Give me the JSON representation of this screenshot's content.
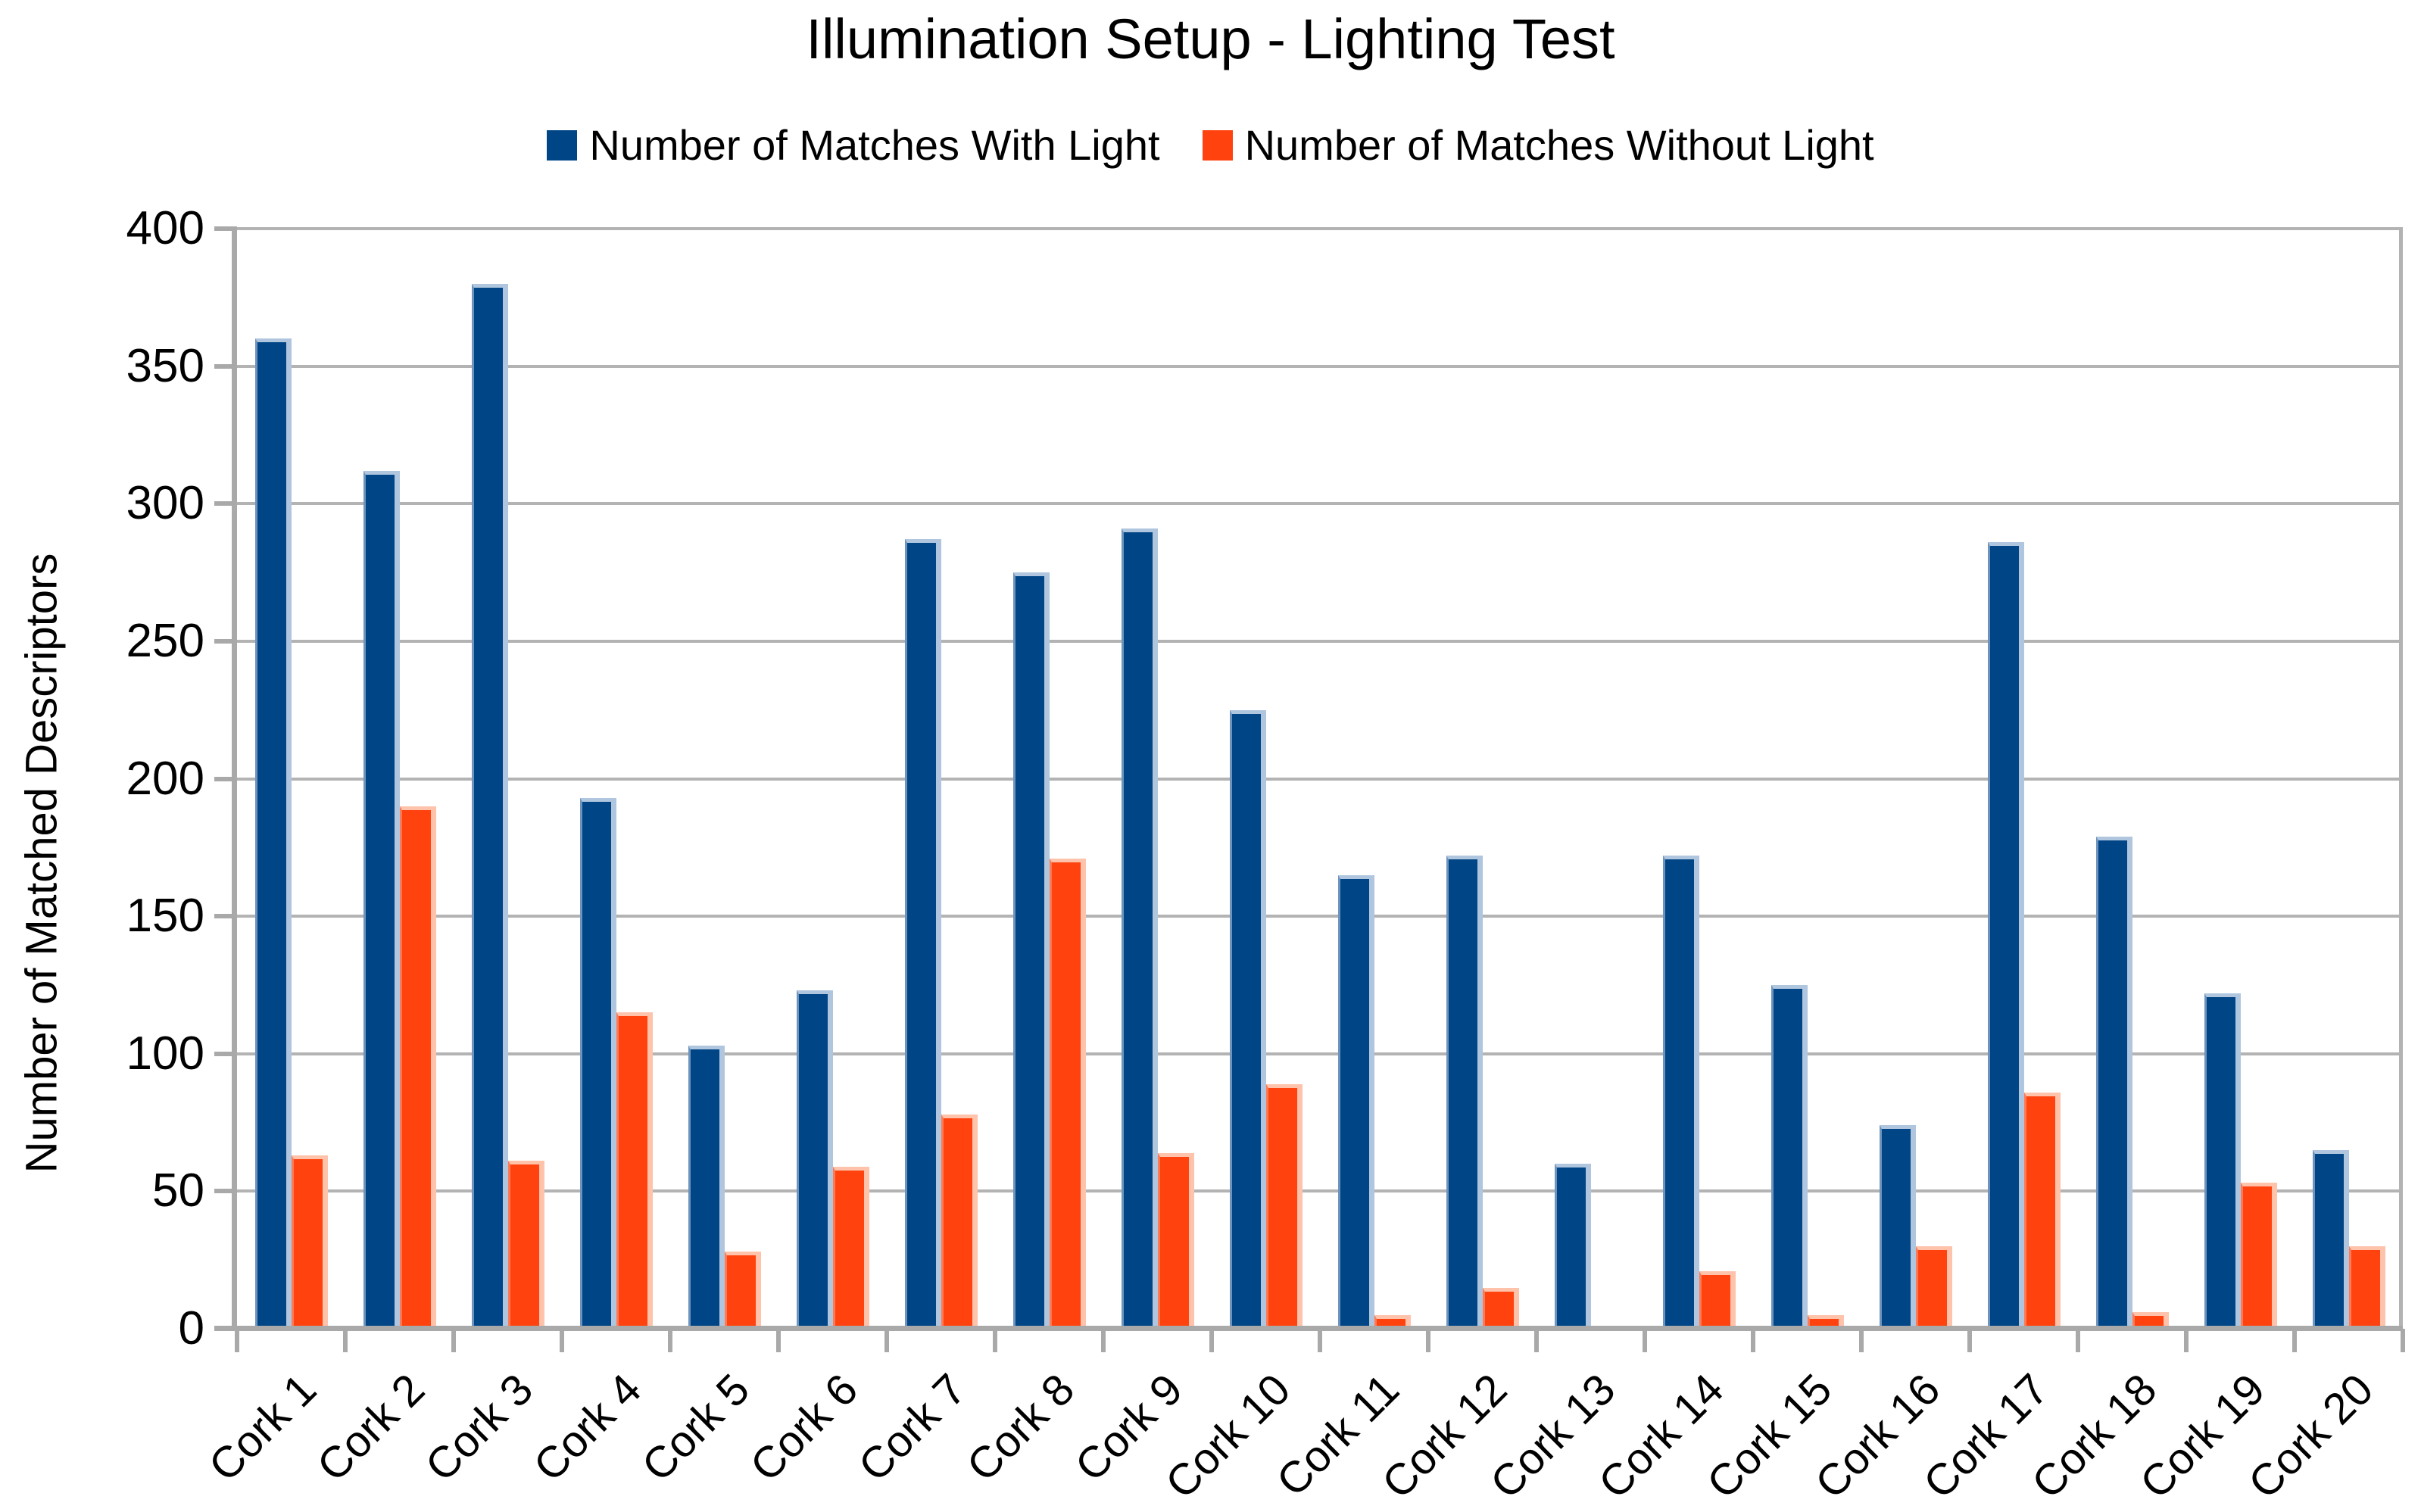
{
  "title": "Illumination Setup - Lighting Test",
  "legend": {
    "items": [
      {
        "label": "Number of Matches With Light",
        "color": "#004586"
      },
      {
        "label": "Number of Matches Without Light",
        "color": "#FF420E"
      }
    ]
  },
  "y_axis": {
    "title": "Number of Matched Descriptors",
    "min": 0,
    "max": 400,
    "step": 50,
    "tick_labels": [
      "0",
      "50",
      "100",
      "150",
      "200",
      "250",
      "300",
      "350",
      "400"
    ]
  },
  "x_axis": {
    "categories": [
      "Cork 1",
      "Cork 2",
      "Cork 3",
      "Cork 4",
      "Cork 5",
      "Cork 6",
      "Cork 7",
      "Cork 8",
      "Cork 9",
      "Cork 10",
      "Cork 11",
      "Cork 12",
      "Cork 13",
      "Cork 14",
      "Cork 15",
      "Cork 16",
      "Cork 17",
      "Cork 18",
      "Cork 19",
      "Cork 20"
    ]
  },
  "colors": {
    "bar_with_light": "#004586",
    "bar_without_light": "#FF420E",
    "bar_with_light_edge": "#AFC6DE",
    "bar_without_light_edge": "#FFC3AC",
    "gridline": "#B3B3B3",
    "axis": "#A9A9A9",
    "text": "#000000",
    "background": "#FFFFFF"
  },
  "chart_data": {
    "type": "bar",
    "title": "Illumination Setup - Lighting Test",
    "categories": [
      "Cork 1",
      "Cork 2",
      "Cork 3",
      "Cork 4",
      "Cork 5",
      "Cork 6",
      "Cork 7",
      "Cork 8",
      "Cork 9",
      "Cork 10",
      "Cork 11",
      "Cork 12",
      "Cork 13",
      "Cork 14",
      "Cork 15",
      "Cork 16",
      "Cork 17",
      "Cork 18",
      "Cork 19",
      "Cork 20"
    ],
    "series": [
      {
        "name": "Number of Matches With Light",
        "color": "#004586",
        "values": [
          360,
          312,
          380,
          193,
          103,
          123,
          287,
          275,
          291,
          225,
          165,
          172,
          60,
          172,
          125,
          74,
          286,
          179,
          122,
          65
        ]
      },
      {
        "name": "Number of Matches Without Light",
        "color": "#FF420E",
        "values": [
          63,
          190,
          61,
          115,
          28,
          59,
          78,
          171,
          64,
          89,
          5,
          15,
          0,
          21,
          5,
          30,
          86,
          6,
          53,
          30
        ]
      }
    ],
    "xlabel": "",
    "ylabel": "Number of Matched Descriptors",
    "ylim": [
      0,
      400
    ],
    "ytick_step": 50,
    "grid": true,
    "legend_position": "top",
    "bar_orientation": "vertical"
  }
}
